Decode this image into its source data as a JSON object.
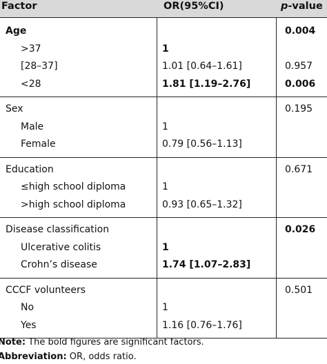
{
  "table": {
    "headers": {
      "factor": "Factor",
      "or": "OR(95%CI)",
      "p_italic": "p",
      "p_rest": "-value"
    },
    "groups": [
      {
        "name": "age",
        "rows": [
          {
            "factor": "Age",
            "or": "",
            "p": "0.004",
            "factor_bold": true,
            "or_bold": false,
            "p_bold": true,
            "sub": false
          },
          {
            "factor": ">37",
            "or": "1",
            "p": "",
            "factor_bold": false,
            "or_bold": true,
            "p_bold": false,
            "sub": true
          },
          {
            "factor": "[28–37]",
            "or": "1.01 [0.64–1.61]",
            "p": "0.957",
            "factor_bold": false,
            "or_bold": false,
            "p_bold": false,
            "sub": true
          },
          {
            "factor": "<28",
            "or": "1.81 [1.19–2.76]",
            "p": "0.006",
            "factor_bold": false,
            "or_bold": true,
            "p_bold": true,
            "sub": true
          }
        ]
      },
      {
        "name": "sex",
        "rows": [
          {
            "factor": "Sex",
            "or": "",
            "p": "0.195",
            "factor_bold": false,
            "or_bold": false,
            "p_bold": false,
            "sub": false
          },
          {
            "factor": "Male",
            "or": "1",
            "p": "",
            "factor_bold": false,
            "or_bold": false,
            "p_bold": false,
            "sub": true
          },
          {
            "factor": "Female",
            "or": "0.79 [0.56–1.13]",
            "p": "",
            "factor_bold": false,
            "or_bold": false,
            "p_bold": false,
            "sub": true
          }
        ]
      },
      {
        "name": "education",
        "rows": [
          {
            "factor": "Education",
            "or": "",
            "p": "0.671",
            "factor_bold": false,
            "or_bold": false,
            "p_bold": false,
            "sub": false
          },
          {
            "factor": "≤high school diploma",
            "or": "1",
            "p": "",
            "factor_bold": false,
            "or_bold": false,
            "p_bold": false,
            "sub": true
          },
          {
            "factor": ">high school diploma",
            "or": "0.93 [0.65–1.32]",
            "p": "",
            "factor_bold": false,
            "or_bold": false,
            "p_bold": false,
            "sub": true
          }
        ]
      },
      {
        "name": "disease-classification",
        "rows": [
          {
            "factor": "Disease classification",
            "or": "",
            "p": "0.026",
            "factor_bold": false,
            "or_bold": false,
            "p_bold": true,
            "sub": false
          },
          {
            "factor": "Ulcerative colitis",
            "or": "1",
            "p": "",
            "factor_bold": false,
            "or_bold": true,
            "p_bold": false,
            "sub": true
          },
          {
            "factor": "Crohn’s disease",
            "or": "1.74 [1.07–2.83]",
            "p": "",
            "factor_bold": false,
            "or_bold": true,
            "p_bold": false,
            "sub": true
          }
        ]
      },
      {
        "name": "cccf-volunteers",
        "rows": [
          {
            "factor": "CCCF volunteers",
            "or": "",
            "p": "0.501",
            "factor_bold": false,
            "or_bold": false,
            "p_bold": false,
            "sub": false
          },
          {
            "factor": "No",
            "or": "1",
            "p": "",
            "factor_bold": false,
            "or_bold": false,
            "p_bold": false,
            "sub": true
          },
          {
            "factor": "Yes",
            "or": "1.16 [0.76–1.76]",
            "p": "",
            "factor_bold": false,
            "or_bold": false,
            "p_bold": false,
            "sub": true
          }
        ]
      }
    ]
  },
  "notes": {
    "note_label": "Note:",
    "note_text": " The bold figures are significant factors.",
    "abbrev_label": "Abbreviation:",
    "abbrev_text": " OR, odds ratio."
  }
}
